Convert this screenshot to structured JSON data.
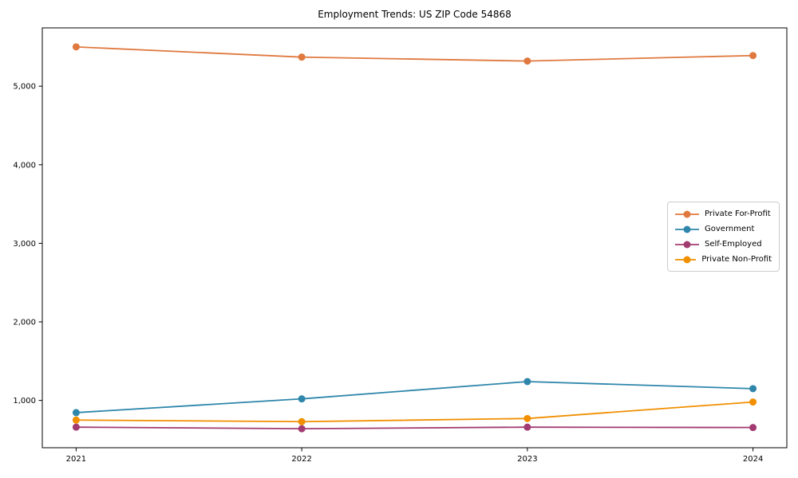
{
  "figure": {
    "background": "#ffffff",
    "frame_color": "#000000",
    "tick_label_color": "#000000"
  },
  "chart_data": {
    "type": "line",
    "title": "Employment Trends: US ZIP Code 54868",
    "xlabel": "",
    "ylabel": "",
    "x": [
      2021,
      2022,
      2023,
      2024
    ],
    "x_tick_labels": [
      "2021",
      "2022",
      "2023",
      "2024"
    ],
    "y_ticks": [
      1000,
      2000,
      3000,
      4000,
      5000
    ],
    "y_tick_labels": [
      "1,000",
      "2,000",
      "3,000",
      "4,000",
      "5,000"
    ],
    "xlim": [
      2020.85,
      2024.15
    ],
    "ylim": [
      398,
      5742
    ],
    "grid": false,
    "legend_position": "right-center",
    "series": [
      {
        "name": "Private For-Profit",
        "color": "#e0793f",
        "values": [
          5500,
          5370,
          5320,
          5390
        ]
      },
      {
        "name": "Government",
        "color": "#2e86ab",
        "values": [
          845,
          1020,
          1240,
          1150
        ]
      },
      {
        "name": "Self-Employed",
        "color": "#a23b72",
        "values": [
          660,
          640,
          660,
          655
        ]
      },
      {
        "name": "Private Non-Profit",
        "color": "#f18f01",
        "values": [
          750,
          730,
          770,
          980
        ]
      }
    ]
  }
}
